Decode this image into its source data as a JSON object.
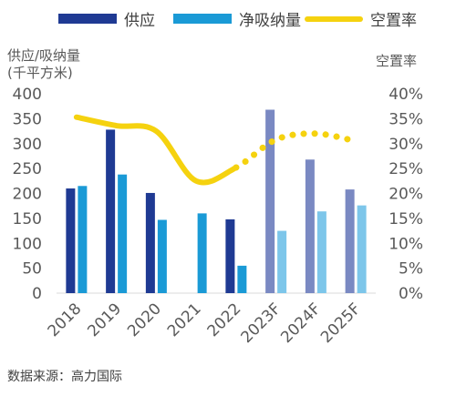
{
  "legend": {
    "supply": "供应",
    "absorption": "净吸纳量",
    "vacancy": "空置率"
  },
  "left_axis_title": "供应/吸纳量\n(千平方米)",
  "right_axis_title": "空置率",
  "source": "数据来源：高力国际",
  "colors": {
    "supply_actual": "#1f3a93",
    "supply_forecast": "#7a89c2",
    "absorption_actual": "#1a9ad6",
    "absorption_forecast": "#7dc6ea",
    "vacancy": "#f5d20f",
    "axis_text": "#595959"
  },
  "chart_data": {
    "type": "bar",
    "categories": [
      "2018",
      "2019",
      "2020",
      "2021",
      "2022",
      "2023F",
      "2024F",
      "2025F"
    ],
    "series": [
      {
        "name": "供应",
        "values": [
          210,
          328,
          201,
          0,
          148,
          368,
          268,
          208
        ]
      },
      {
        "name": "净吸纳量",
        "values": [
          215,
          238,
          147,
          160,
          55,
          125,
          164,
          176
        ]
      },
      {
        "name": "空置率",
        "axis": "right",
        "type": "line",
        "unit": "%",
        "values": [
          35.3,
          33.6,
          32.5,
          22.5,
          25.2,
          30.8,
          32.0,
          30.5
        ],
        "forecast_from_index": 4
      }
    ],
    "ylim": [
      0,
      400
    ],
    "yticks": [
      "0",
      "50",
      "100",
      "150",
      "200",
      "250",
      "300",
      "350",
      "400"
    ],
    "y2lim": [
      0,
      40
    ],
    "y2ticks": [
      "0%",
      "5%",
      "10%",
      "15%",
      "20%",
      "25%",
      "30%",
      "35%",
      "40%"
    ],
    "grid": false,
    "legend_position": "top"
  }
}
